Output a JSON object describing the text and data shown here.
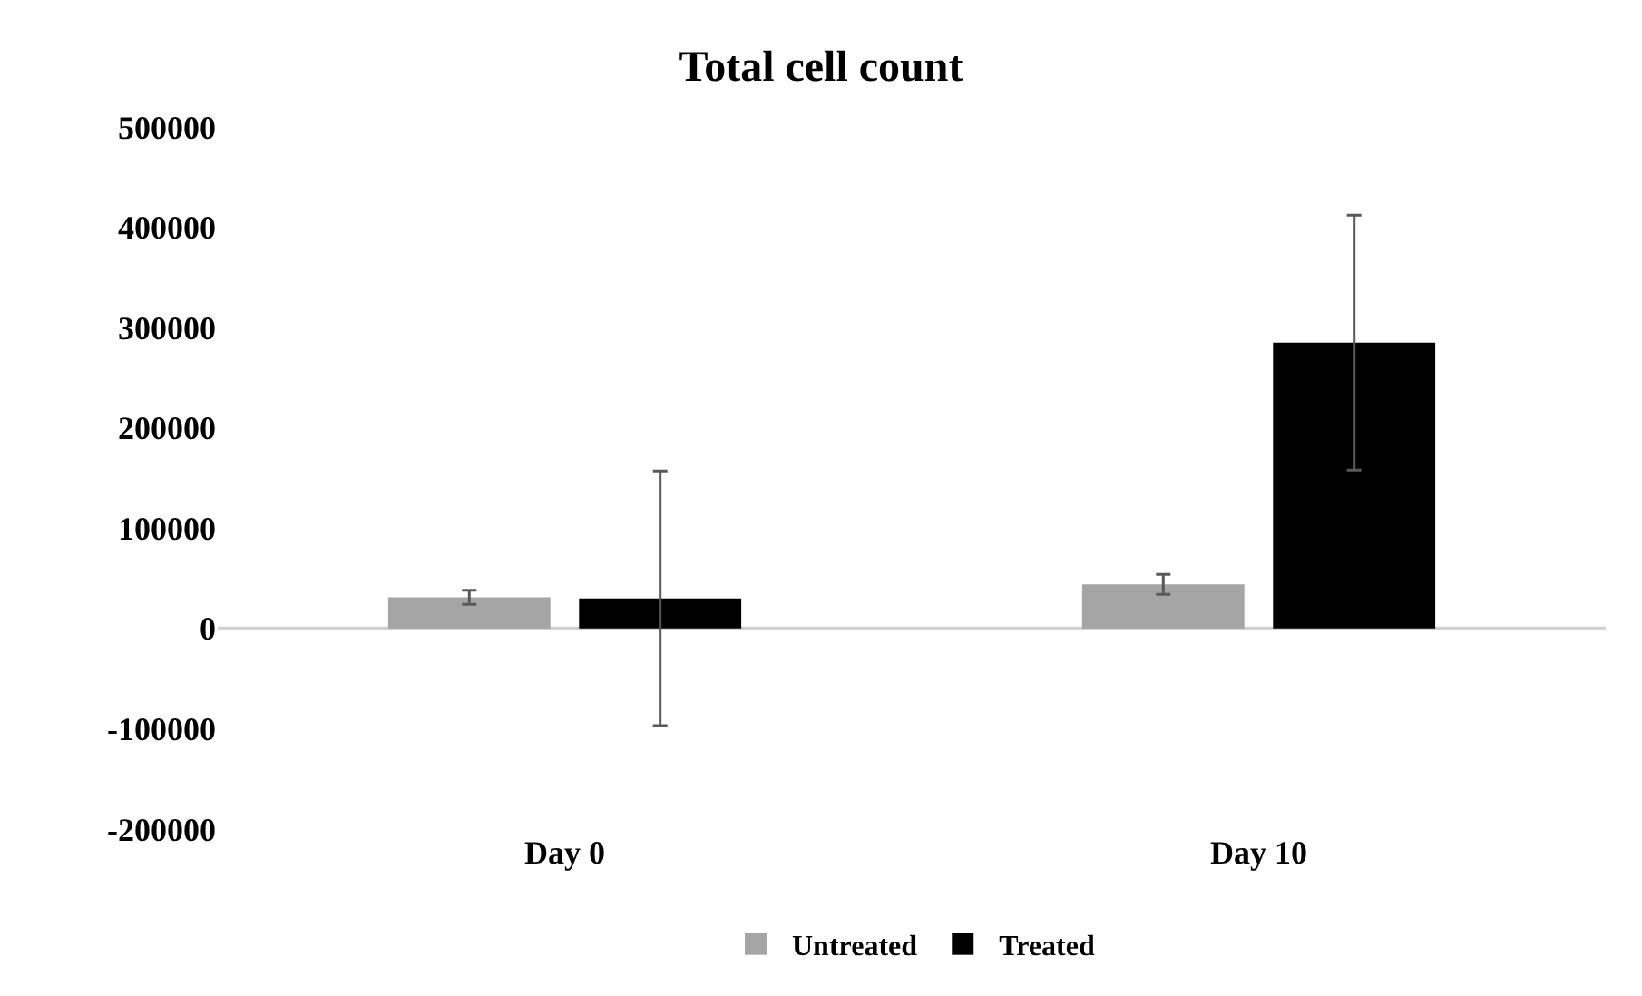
{
  "chart_data": {
    "type": "bar",
    "title": "Total cell count",
    "categories": [
      "Day 0",
      "Day 10"
    ],
    "series": [
      {
        "name": "Untreated",
        "color": "#a5a5a5",
        "values": [
          31000,
          44000
        ],
        "errors": [
          7000,
          10000
        ]
      },
      {
        "name": "Treated",
        "color": "#000000",
        "values": [
          30000,
          285000
        ],
        "errors": [
          127000,
          127000
        ]
      }
    ],
    "ylim": [
      -200000,
      500000
    ],
    "yticks": [
      -200000,
      -100000,
      0,
      100000,
      200000,
      300000,
      400000,
      500000
    ],
    "legend": "bottom"
  }
}
